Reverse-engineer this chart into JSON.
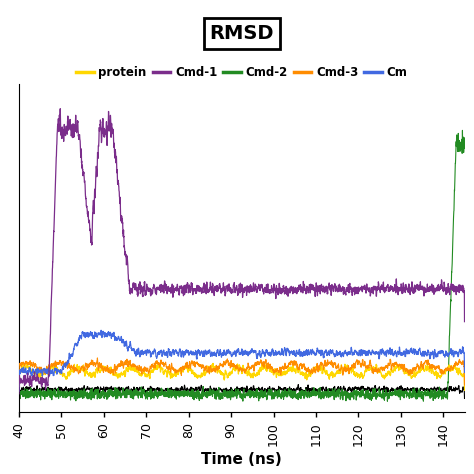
{
  "title": "RMSD",
  "xlabel": "Time (ns)",
  "xlim": [
    40,
    145
  ],
  "xticks": [
    40,
    50,
    60,
    70,
    80,
    90,
    100,
    110,
    120,
    130,
    140
  ],
  "series": {
    "cmd1": {
      "color": "#7B2D8B"
    },
    "cmd2": {
      "color": "#228B22"
    },
    "cmd3": {
      "color": "#FF8C00"
    },
    "cmd4": {
      "color": "#4169E1"
    },
    "protein": {
      "color": "#FFD700"
    },
    "black": {
      "color": "#000000"
    }
  },
  "background_color": "#ffffff"
}
